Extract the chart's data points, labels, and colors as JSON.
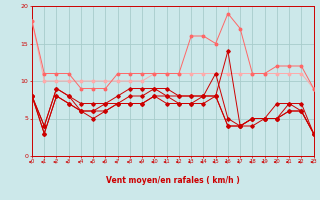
{
  "bg_color": "#cce8ea",
  "grid_color": "#a8cccc",
  "xlabel": "Vent moyen/en rafales ( km/h )",
  "xlabel_color": "#cc0000",
  "tick_color": "#cc0000",
  "xlim": [
    0,
    23
  ],
  "ylim": [
    0,
    20
  ],
  "yticks": [
    0,
    5,
    10,
    15,
    20
  ],
  "xticks": [
    0,
    1,
    2,
    3,
    4,
    5,
    6,
    7,
    8,
    9,
    10,
    11,
    12,
    13,
    14,
    15,
    16,
    17,
    18,
    19,
    20,
    21,
    22,
    23
  ],
  "c_light": "#ffaaaa",
  "c_med": "#ff6666",
  "c_dark": "#cc0000",
  "l1_y": [
    18,
    10,
    10,
    10,
    10,
    10,
    10,
    10,
    10,
    10,
    11,
    11,
    11,
    11,
    11,
    11,
    11,
    11,
    11,
    11,
    11,
    11,
    11,
    9
  ],
  "l2_y": [
    18,
    11,
    11,
    11,
    9,
    9,
    9,
    11,
    11,
    11,
    11,
    11,
    11,
    16,
    16,
    15,
    19,
    17,
    11,
    11,
    12,
    12,
    12,
    9
  ],
  "l3_y": [
    8,
    4,
    9,
    8,
    7,
    7,
    7,
    8,
    9,
    9,
    9,
    9,
    8,
    8,
    8,
    8,
    14,
    4,
    5,
    5,
    5,
    7,
    7,
    3
  ],
  "l4_y": [
    8,
    4,
    9,
    8,
    6,
    6,
    7,
    7,
    8,
    8,
    9,
    8,
    8,
    8,
    8,
    11,
    5,
    4,
    5,
    5,
    7,
    7,
    6,
    3
  ],
  "l5_y": [
    8,
    3,
    8,
    7,
    6,
    6,
    6,
    7,
    7,
    7,
    8,
    8,
    7,
    7,
    8,
    8,
    4,
    4,
    5,
    5,
    5,
    6,
    6,
    3
  ],
  "l6_y": [
    8,
    3,
    8,
    7,
    6,
    5,
    6,
    7,
    7,
    7,
    8,
    7,
    7,
    7,
    7,
    8,
    4,
    4,
    4,
    5,
    5,
    6,
    6,
    3
  ]
}
